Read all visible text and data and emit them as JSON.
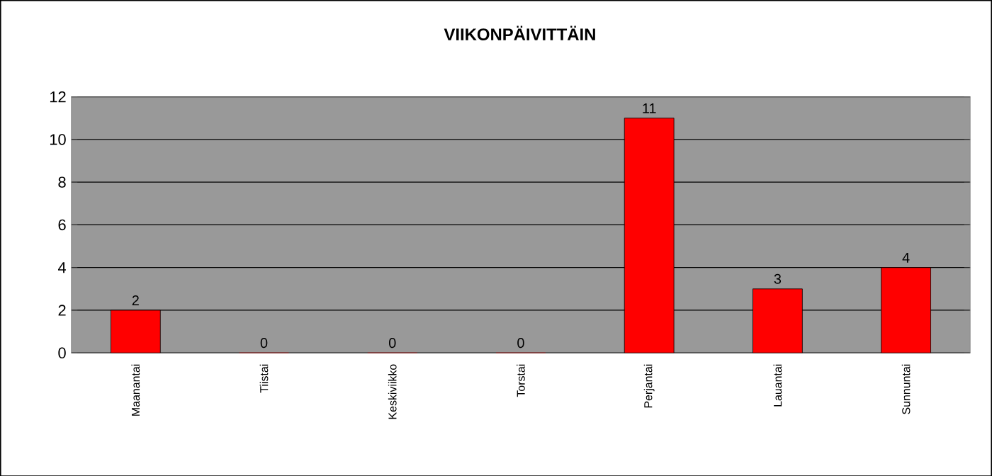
{
  "chart_data": {
    "type": "bar",
    "title": "VIIKONPÄIVITTÄIN",
    "categories": [
      "Maanantai",
      "Tiistai",
      "Keskiviikko",
      "Torstai",
      "Perjantai",
      "Lauantai",
      "Sunnuntai"
    ],
    "values": [
      2,
      0,
      0,
      0,
      11,
      3,
      4
    ],
    "color": "#ff0000",
    "ylim": [
      0,
      12
    ],
    "yticks": [
      0,
      2,
      4,
      6,
      8,
      10,
      12
    ],
    "grid": "y",
    "data_labels": true
  }
}
